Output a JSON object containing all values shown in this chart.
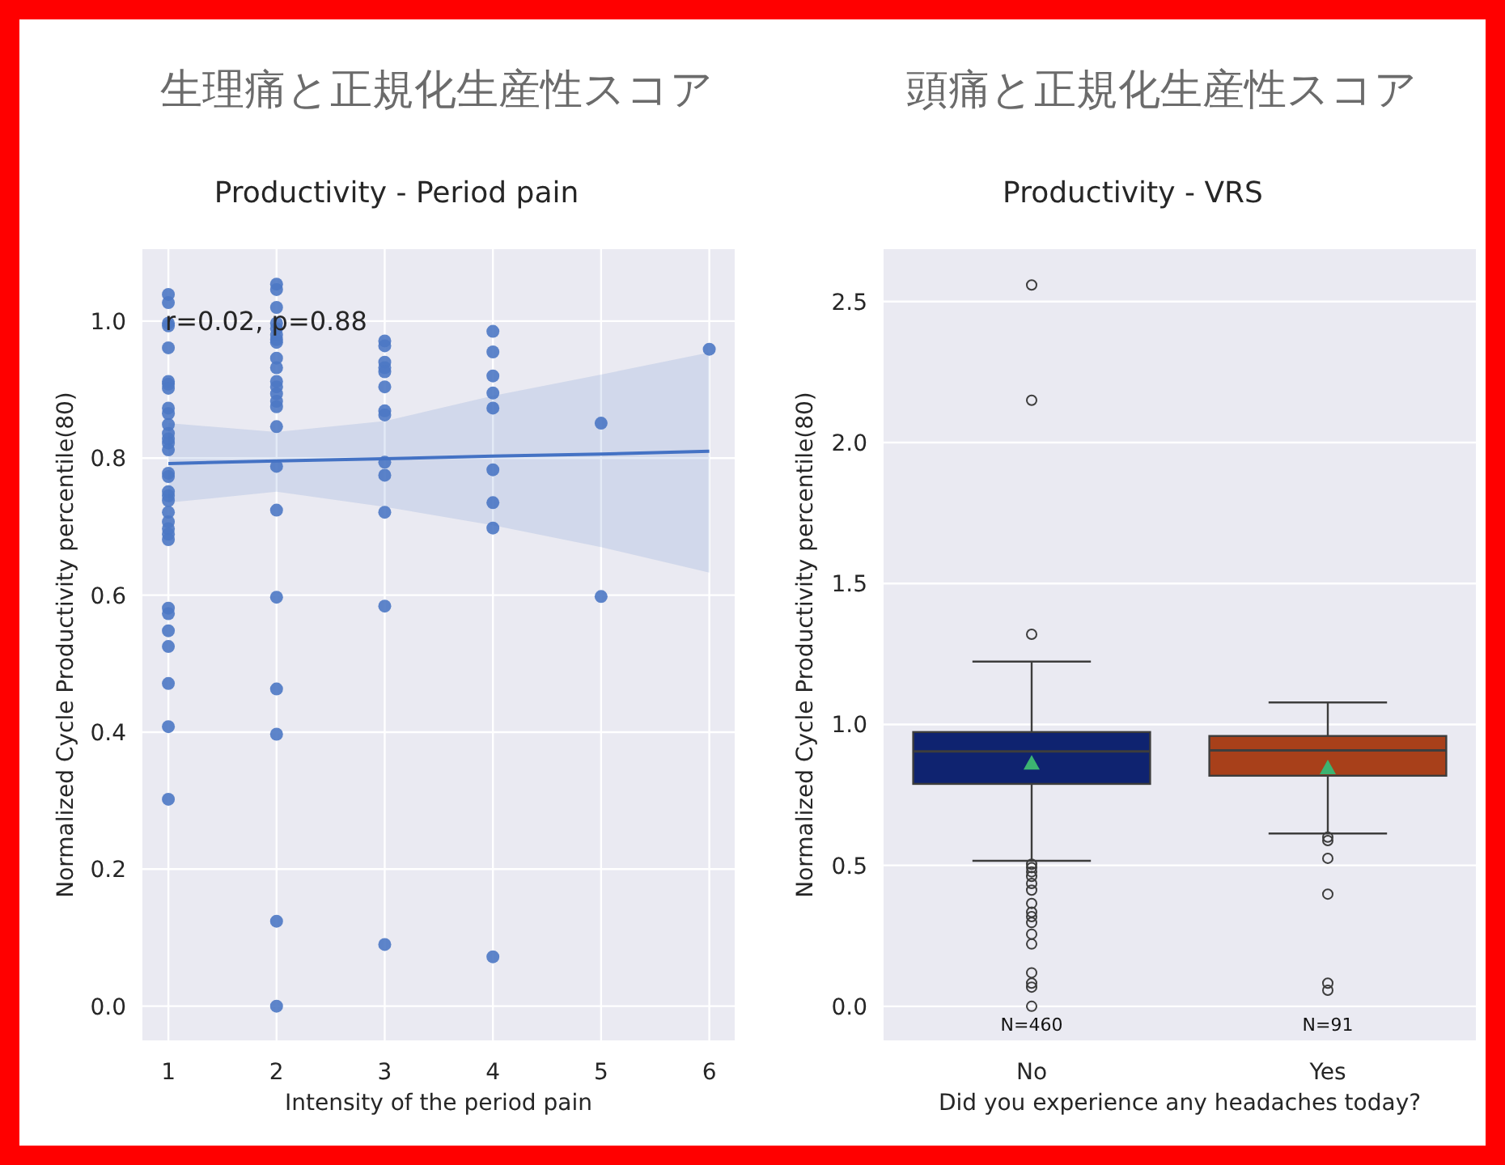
{
  "chart_data": [
    {
      "type": "scatter",
      "title": "生理痛と正規化生産性スコア",
      "subtitle": "Productivity - Period pain",
      "xlabel": "Intensity of the period pain",
      "ylabel": "Normalized Cycle Productivity percentile(80)",
      "annotations": [
        "r=0.02, p=0.88"
      ],
      "xlim": [
        0.76,
        6.235
      ],
      "ylim": [
        -0.05,
        1.105
      ],
      "xticks": [
        1,
        2,
        3,
        4,
        5,
        6
      ],
      "yticks": [
        {
          "value": 0,
          "label": "0.0"
        },
        0.2,
        0.4,
        0.6,
        0.8,
        {
          "value": 1,
          "label": "1.0"
        }
      ],
      "grid": true,
      "series": [
        {
          "type": "scatter",
          "marker": "circle",
          "color": "#4c78c4",
          "x": [
            1,
            1,
            1,
            1,
            1,
            1,
            1,
            1,
            1,
            1,
            1,
            1,
            1,
            1,
            1,
            1,
            1,
            1,
            1,
            1,
            1,
            1,
            1,
            1,
            1,
            1,
            1,
            1,
            1,
            1,
            1,
            1,
            2,
            2,
            2,
            2,
            2,
            2,
            2,
            2,
            2,
            2,
            2,
            2,
            2,
            2,
            2,
            2,
            2,
            2,
            2,
            2,
            2,
            2,
            2,
            3,
            3,
            3,
            3,
            3,
            3,
            3,
            3,
            3,
            3,
            3,
            3,
            3,
            4,
            4,
            4,
            4,
            4,
            4,
            4,
            4,
            4,
            5,
            5,
            6
          ],
          "values": [
            1.039,
            1.027,
            0.997,
            0.993,
            0.961,
            0.912,
            0.908,
            0.902,
            0.873,
            0.865,
            0.849,
            0.836,
            0.828,
            0.822,
            0.812,
            0.778,
            0.773,
            0.751,
            0.745,
            0.738,
            0.721,
            0.707,
            0.697,
            0.689,
            0.681,
            0.581,
            0.573,
            0.548,
            0.525,
            0.471,
            0.408,
            0.302,
            1.054,
            1.046,
            1.02,
            0.997,
            0.989,
            0.98,
            0.973,
            0.969,
            0.946,
            0.932,
            0.912,
            0.904,
            0.894,
            0.883,
            0.875,
            0.846,
            0.788,
            0.724,
            0.597,
            0.463,
            0.397,
            0.124,
            0.0,
            0.971,
            0.964,
            0.94,
            0.932,
            0.926,
            0.904,
            0.869,
            0.863,
            0.794,
            0.775,
            0.721,
            0.584,
            0.09,
            0.985,
            0.955,
            0.92,
            0.895,
            0.873,
            0.783,
            0.735,
            0.698,
            0.072,
            0.851,
            0.598,
            0.959
          ]
        },
        {
          "type": "line",
          "color": "#4472c4",
          "x": [
            1,
            2,
            3,
            4,
            5,
            6
          ],
          "values": [
            0.792,
            0.796,
            0.799,
            0.803,
            0.806,
            0.81
          ],
          "lower": [
            0.735,
            0.751,
            0.729,
            0.702,
            0.67,
            0.633
          ],
          "upper": [
            0.851,
            0.838,
            0.854,
            0.891,
            0.922,
            0.954
          ]
        }
      ]
    },
    {
      "type": "box",
      "title": "頭痛と正規化生産性スコア",
      "subtitle": "Productivity - VRS",
      "xlabel": "Did you experience any headaches today?",
      "ylabel": "Normalized Cycle Productivity percentile(80)",
      "annotations": [
        "N=460",
        "N=91"
      ],
      "categories": [
        "No",
        "Yes"
      ],
      "colors": [
        "#0f2370",
        "#a8401a"
      ],
      "ylim": [
        -0.121,
        2.686
      ],
      "yticks": [
        {
          "value": 0,
          "label": "0.0"
        },
        0.5,
        {
          "value": 1,
          "label": "1.0"
        },
        1.5,
        {
          "value": 2,
          "label": "2.0"
        },
        2.5
      ],
      "grid": "y",
      "boxes": [
        {
          "low": 0.516,
          "q1": 0.789,
          "median": 0.904,
          "q3": 0.973,
          "high": 1.223,
          "mean": 0.863,
          "outliers": [
            2.559,
            2.15,
            1.32,
            0.504,
            0.492,
            0.477,
            0.461,
            0.436,
            0.412,
            0.365,
            0.334,
            0.318,
            0.297,
            0.256,
            0.221,
            0.119,
            0.082,
            0.068,
            0.0
          ]
        },
        {
          "low": 0.613,
          "q1": 0.818,
          "median": 0.908,
          "q3": 0.959,
          "high": 1.078,
          "mean": 0.846,
          "outliers": [
            0.6,
            0.588,
            0.525,
            0.398,
            0.082,
            0.057
          ]
        }
      ]
    }
  ]
}
